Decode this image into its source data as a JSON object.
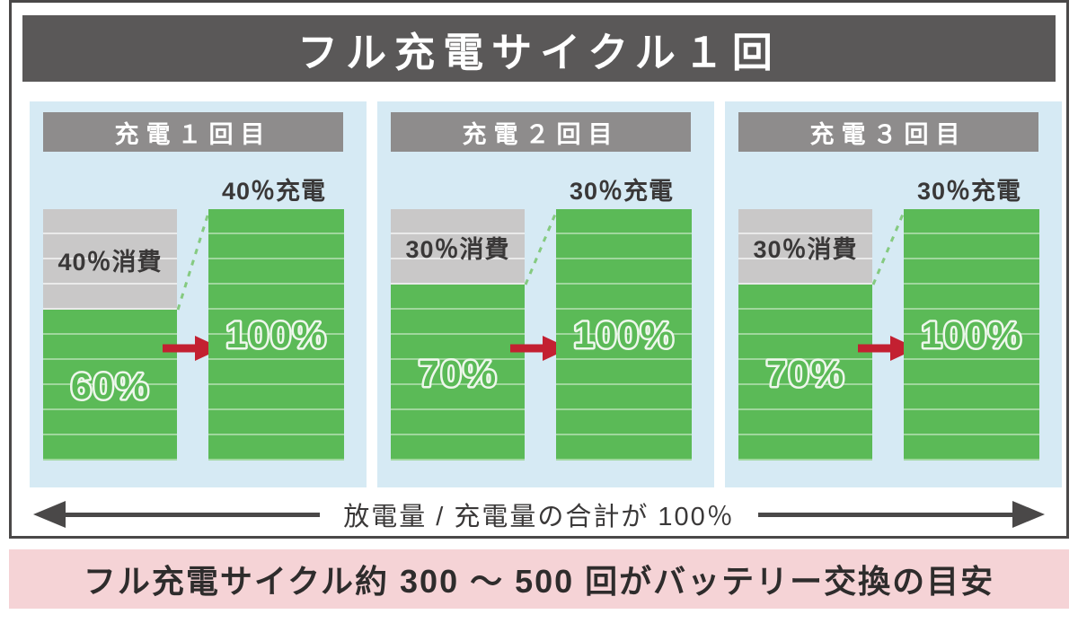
{
  "title": "フル充電サイクル１回",
  "colors": {
    "frame_border": "#4a4848",
    "title_bg": "#5a5858",
    "panel_bg": "#d6eaf4",
    "header_bg": "#8e8c8c",
    "green": "#5bba57",
    "gray": "#c9c8c8",
    "red": "#c32031",
    "pink": "#f5d3d6",
    "text_dark": "#3a3838"
  },
  "panels": [
    {
      "header": "充電１回目",
      "charge_label": "40％充電",
      "consumed_label": "40％消費",
      "consumed_pct": 40,
      "before_pct_label": "60%",
      "after_pct_label": "100%"
    },
    {
      "header": "充電２回目",
      "charge_label": "30％充電",
      "consumed_label": "30％消費",
      "consumed_pct": 30,
      "before_pct_label": "70%",
      "after_pct_label": "100%"
    },
    {
      "header": "充電３回目",
      "charge_label": "30％充電",
      "consumed_label": "30％消費",
      "consumed_pct": 30,
      "before_pct_label": "70%",
      "after_pct_label": "100%"
    }
  ],
  "bottom_axis": {
    "label": "放電量 / 充電量の合計が 100％"
  },
  "footer": {
    "label": "フル充電サイクル約 300 ～ 500 回がバッテリー交換の目安"
  }
}
